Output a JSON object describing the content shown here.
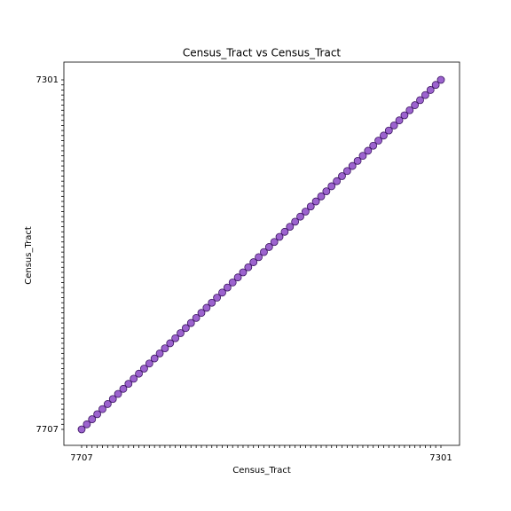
{
  "chart_data": {
    "type": "scatter",
    "title": "Census_Tract vs Census_Tract",
    "x_label": "Census_Tract",
    "y_label": "Census_Tract",
    "color": "#7b2fbe",
    "edgecolor": "#3a1560",
    "categories": [
      "7707",
      null,
      null,
      null,
      null,
      null,
      null,
      null,
      null,
      null,
      null,
      null,
      null,
      null,
      null,
      null,
      null,
      null,
      null,
      null,
      null,
      null,
      null,
      null,
      null,
      null,
      null,
      null,
      null,
      null,
      null,
      null,
      null,
      null,
      null,
      null,
      null,
      null,
      null,
      null,
      null,
      null,
      null,
      null,
      null,
      null,
      null,
      null,
      null,
      null,
      null,
      null,
      null,
      null,
      null,
      null,
      null,
      null,
      null,
      null,
      null,
      null,
      null,
      null,
      null,
      null,
      null,
      null,
      null,
      "7301"
    ]
  }
}
